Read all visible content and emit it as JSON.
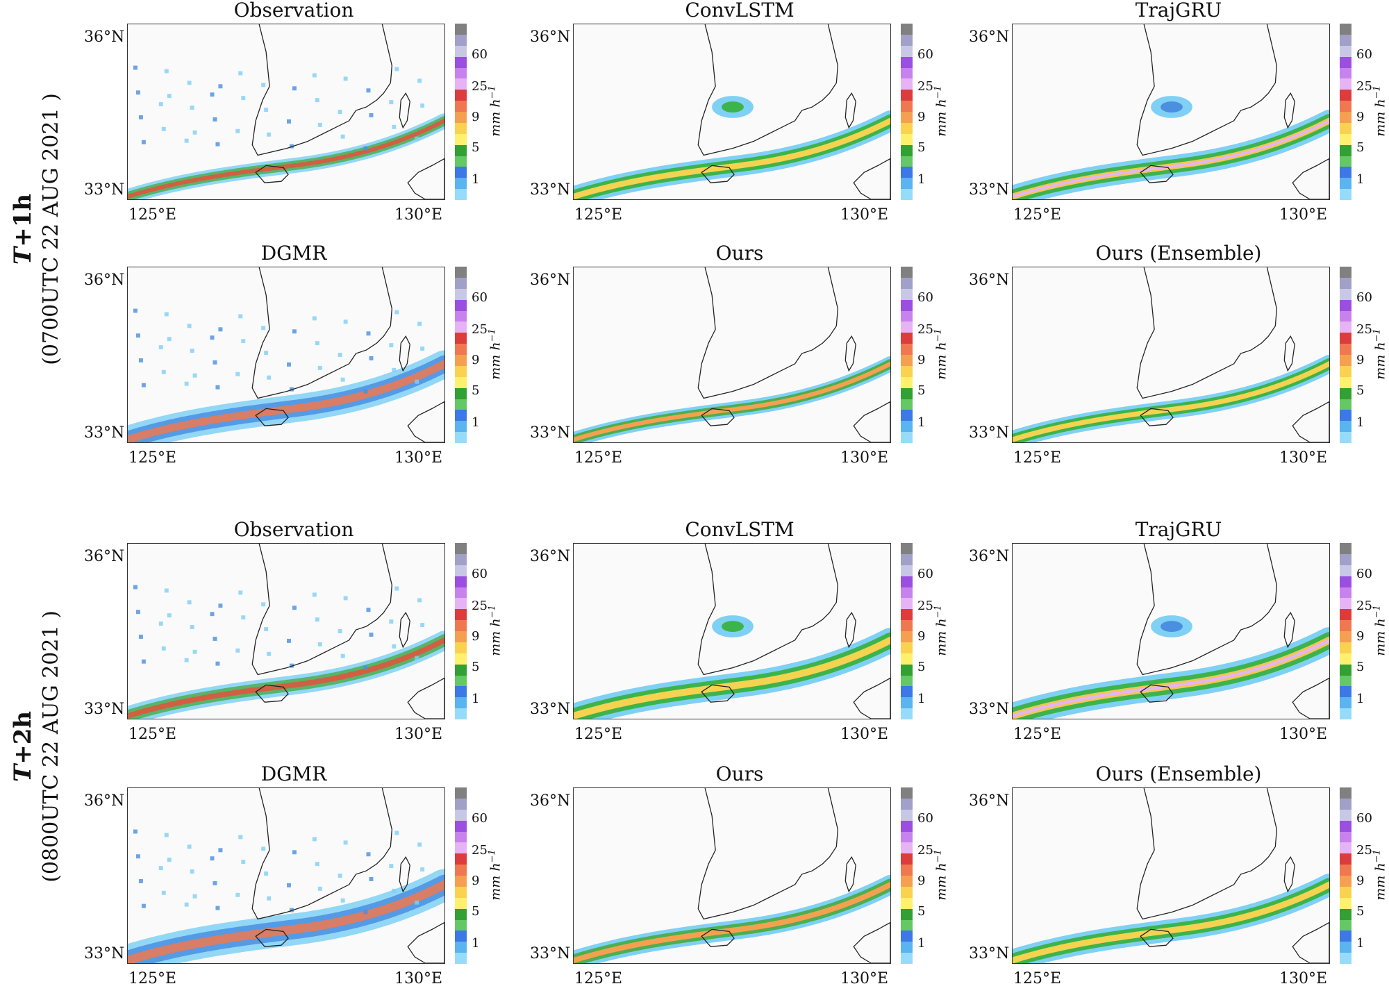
{
  "groups": [
    {
      "lead": "T",
      "lead_rest": "+1h",
      "time": "(0700UTC 22 AUG 2021 )",
      "panels": [
        "Observation",
        "ConvLSTM",
        "TrajGRU",
        "DGMR",
        "Ours",
        "Ours (Ensemble)"
      ]
    },
    {
      "lead": "T",
      "lead_rest": "+2h",
      "time": "(0800UTC 22 AUG 2021 )",
      "panels": [
        "Observation",
        "ConvLSTM",
        "TrajGRU",
        "DGMR",
        "Ours",
        "Ours (Ensemble)"
      ]
    }
  ],
  "axes": {
    "lat_top": "36°N",
    "lat_bottom": "33°N",
    "lon_left": "125°E",
    "lon_right": "130°E"
  },
  "colorbar": {
    "unit": "mm h",
    "unit_exp": "−1",
    "labels": [
      "60",
      "25",
      "9",
      "5",
      "1"
    ],
    "colors": [
      "#808080",
      "#a0a0c8",
      "#c8c8e6",
      "#9b4fe0",
      "#c882ee",
      "#e6b4f5",
      "#dc3c3c",
      "#f07850",
      "#f5a050",
      "#fad250",
      "#fff06e",
      "#32a032",
      "#64c864",
      "#3c78e6",
      "#5ab4f0",
      "#96dcfa"
    ]
  }
}
